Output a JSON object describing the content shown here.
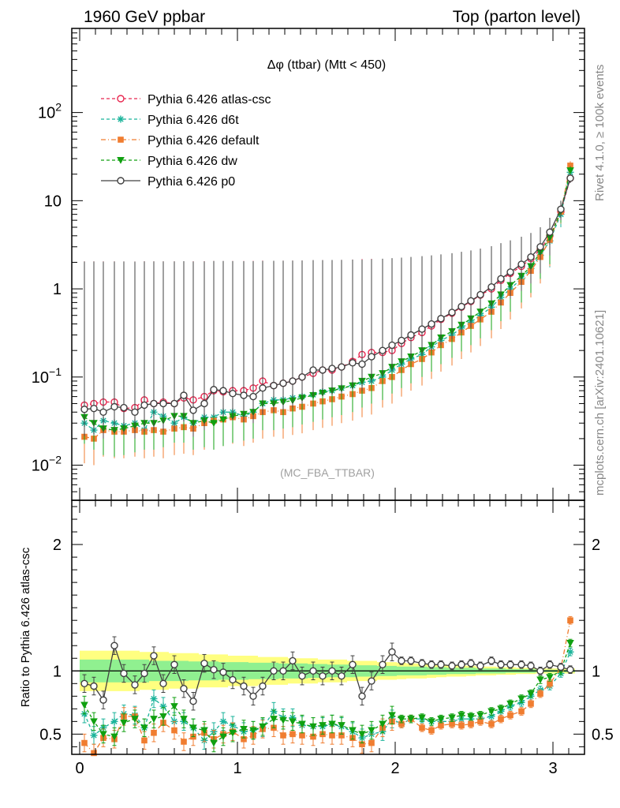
{
  "header": {
    "left": "1960 GeV ppbar",
    "right": "Top (parton level)"
  },
  "side": {
    "rivet": "Rivet 4.1.0, ≥ 100k events",
    "mcplots": "mcplots.cern.ch [arXiv:2401.10621]"
  },
  "colors": {
    "atlas_csc": "#e8264f",
    "d6t": "#19b39a",
    "default": "#f07d30",
    "dw": "#10a010",
    "p0": "#404040",
    "band_outer": "#ffff80",
    "band_inner": "#90f090"
  },
  "chart_data": [
    {
      "type": "line",
      "title": "Δφ (ttbar) (Mtt < 450)",
      "watermark": "(MC_FBA_TTBAR)",
      "yscale": "log",
      "ylim": [
        0.004,
        900
      ],
      "xlim": [
        -0.05,
        3.2
      ],
      "yticks": [
        {
          "value": 0.01,
          "base": "10",
          "exp": "−2"
        },
        {
          "value": 0.1,
          "base": "10",
          "exp": "−1"
        },
        {
          "value": 1,
          "label": "1"
        },
        {
          "value": 10,
          "label": "10"
        },
        {
          "value": 100,
          "base": "10",
          "exp": "2"
        }
      ],
      "legend_position": "top-left",
      "x": [
        0.03,
        0.09,
        0.15,
        0.22,
        0.28,
        0.35,
        0.41,
        0.47,
        0.53,
        0.6,
        0.66,
        0.72,
        0.79,
        0.85,
        0.91,
        0.97,
        1.04,
        1.1,
        1.16,
        1.23,
        1.29,
        1.35,
        1.41,
        1.48,
        1.54,
        1.6,
        1.66,
        1.73,
        1.79,
        1.85,
        1.92,
        1.98,
        2.04,
        2.1,
        2.17,
        2.23,
        2.29,
        2.36,
        2.42,
        2.48,
        2.54,
        2.61,
        2.67,
        2.73,
        2.8,
        2.86,
        2.92,
        2.98,
        3.05,
        3.11
      ],
      "series": [
        {
          "name": "Pythia 6.426 atlas-csc",
          "key": "atlas_csc",
          "marker": "open-circle",
          "dash": "4,3",
          "values": [
            0.048,
            0.05,
            0.052,
            0.052,
            0.044,
            0.045,
            0.055,
            0.05,
            0.052,
            0.05,
            0.058,
            0.055,
            0.06,
            0.07,
            0.068,
            0.07,
            0.07,
            0.075,
            0.09,
            0.08,
            0.085,
            0.09,
            0.1,
            0.11,
            0.12,
            0.12,
            0.13,
            0.15,
            0.18,
            0.19,
            0.19,
            0.2,
            0.24,
            0.28,
            0.32,
            0.38,
            0.45,
            0.53,
            0.62,
            0.72,
            0.85,
            1.0,
            1.25,
            1.5,
            1.8,
            2.2,
            2.8,
            4.0,
            7.5,
            18
          ]
        },
        {
          "name": "Pythia 6.426 d6t",
          "key": "d6t",
          "marker": "star",
          "dash": "4,3",
          "values": [
            0.03,
            0.025,
            0.032,
            0.03,
            0.028,
            0.03,
            0.025,
            0.04,
            0.036,
            0.03,
            0.035,
            0.03,
            0.035,
            0.035,
            0.04,
            0.04,
            0.036,
            0.04,
            0.05,
            0.055,
            0.055,
            0.058,
            0.06,
            0.063,
            0.068,
            0.07,
            0.075,
            0.08,
            0.087,
            0.09,
            0.1,
            0.12,
            0.14,
            0.16,
            0.18,
            0.22,
            0.26,
            0.3,
            0.36,
            0.42,
            0.5,
            0.62,
            0.8,
            1.0,
            1.3,
            1.7,
            2.4,
            3.5,
            7.0,
            21
          ]
        },
        {
          "name": "Pythia 6.426 default",
          "key": "default",
          "marker": "square",
          "dash": "6,3,1,3",
          "values": [
            0.021,
            0.02,
            0.025,
            0.024,
            0.024,
            0.025,
            0.024,
            0.025,
            0.024,
            0.026,
            0.027,
            0.026,
            0.03,
            0.032,
            0.033,
            0.035,
            0.033,
            0.036,
            0.04,
            0.042,
            0.04,
            0.044,
            0.046,
            0.05,
            0.053,
            0.056,
            0.06,
            0.064,
            0.07,
            0.075,
            0.09,
            0.1,
            0.12,
            0.14,
            0.16,
            0.19,
            0.23,
            0.27,
            0.32,
            0.38,
            0.45,
            0.55,
            0.7,
            0.9,
            1.2,
            1.6,
            2.3,
            3.6,
            7.5,
            25
          ]
        },
        {
          "name": "Pythia 6.426 dw",
          "key": "dw",
          "marker": "down-triangle",
          "dash": "4,3",
          "values": [
            0.035,
            0.03,
            0.026,
            0.025,
            0.026,
            0.028,
            0.03,
            0.03,
            0.032,
            0.036,
            0.036,
            0.03,
            0.032,
            0.03,
            0.033,
            0.036,
            0.038,
            0.04,
            0.05,
            0.05,
            0.052,
            0.054,
            0.058,
            0.062,
            0.066,
            0.07,
            0.074,
            0.08,
            0.09,
            0.1,
            0.11,
            0.13,
            0.15,
            0.17,
            0.2,
            0.23,
            0.28,
            0.33,
            0.39,
            0.46,
            0.55,
            0.68,
            0.86,
            1.1,
            1.4,
            1.8,
            2.6,
            3.8,
            7.6,
            22
          ]
        },
        {
          "name": "Pythia 6.426 p0",
          "key": "p0",
          "marker": "open-circle",
          "dash": "",
          "values": [
            0.043,
            0.044,
            0.04,
            0.046,
            0.045,
            0.04,
            0.048,
            0.05,
            0.05,
            0.05,
            0.062,
            0.042,
            0.05,
            0.072,
            0.07,
            0.065,
            0.062,
            0.06,
            0.075,
            0.08,
            0.085,
            0.09,
            0.1,
            0.12,
            0.12,
            0.125,
            0.13,
            0.145,
            0.14,
            0.17,
            0.2,
            0.23,
            0.26,
            0.3,
            0.35,
            0.4,
            0.46,
            0.54,
            0.63,
            0.73,
            0.86,
            1.05,
            1.3,
            1.55,
            1.9,
            2.3,
            3.0,
            4.4,
            8.0,
            18
          ]
        }
      ]
    },
    {
      "type": "line",
      "ylabel": "Ratio to Pythia 6.426 atlas-csc",
      "ylim": [
        0.34,
        2.35
      ],
      "xlim": [
        -0.05,
        3.2
      ],
      "yticks": [
        0.5,
        1,
        2
      ],
      "xticks": [
        0,
        1,
        2,
        3
      ],
      "reference": 1,
      "band_inner_halfwidth": [
        0.09,
        0.09,
        0.09,
        0.09,
        0.09,
        0.09,
        0.09,
        0.08,
        0.08,
        0.08,
        0.08,
        0.075,
        0.075,
        0.075,
        0.07,
        0.07,
        0.07,
        0.065,
        0.065,
        0.065,
        0.06,
        0.06,
        0.06,
        0.055,
        0.055,
        0.05,
        0.05,
        0.05,
        0.045,
        0.045,
        0.04,
        0.04,
        0.035,
        0.035,
        0.035,
        0.03,
        0.03,
        0.025,
        0.025,
        0.025,
        0.02,
        0.02,
        0.02,
        0.015,
        0.015,
        0.015,
        0.01,
        0.01,
        0.01,
        0.01
      ],
      "band_outer_halfwidth": [
        0.16,
        0.16,
        0.16,
        0.16,
        0.16,
        0.16,
        0.15,
        0.15,
        0.15,
        0.14,
        0.14,
        0.14,
        0.13,
        0.13,
        0.13,
        0.12,
        0.12,
        0.12,
        0.11,
        0.11,
        0.11,
        0.1,
        0.1,
        0.1,
        0.09,
        0.09,
        0.09,
        0.08,
        0.08,
        0.08,
        0.07,
        0.07,
        0.065,
        0.06,
        0.06,
        0.055,
        0.05,
        0.045,
        0.045,
        0.04,
        0.035,
        0.035,
        0.03,
        0.03,
        0.025,
        0.025,
        0.02,
        0.02,
        0.02,
        0.02
      ],
      "series": [
        {
          "name": "Pythia 6.426 d6t",
          "key": "d6t",
          "values": [
            0.66,
            0.49,
            0.55,
            0.6,
            0.66,
            0.65,
            0.55,
            0.78,
            0.72,
            0.6,
            0.6,
            0.55,
            0.45,
            0.52,
            0.6,
            0.57,
            0.52,
            0.53,
            0.55,
            0.68,
            0.63,
            0.63,
            0.57,
            0.56,
            0.56,
            0.58,
            0.56,
            0.52,
            0.47,
            0.5,
            0.52,
            0.62,
            0.58,
            0.62,
            0.62,
            0.6,
            0.6,
            0.6,
            0.62,
            0.62,
            0.62,
            0.64,
            0.68,
            0.72,
            0.75,
            0.8,
            0.85,
            0.88,
            0.98,
            1.15
          ]
        },
        {
          "name": "Pythia 6.426 default",
          "key": "default",
          "values": [
            0.43,
            0.35,
            0.47,
            0.46,
            0.64,
            0.64,
            0.45,
            0.51,
            0.59,
            0.53,
            0.44,
            0.48,
            0.51,
            0.46,
            0.5,
            0.52,
            0.46,
            0.49,
            0.54,
            0.55,
            0.49,
            0.5,
            0.49,
            0.48,
            0.5,
            0.49,
            0.49,
            0.47,
            0.42,
            0.43,
            0.55,
            0.6,
            0.58,
            0.62,
            0.55,
            0.53,
            0.57,
            0.58,
            0.57,
            0.58,
            0.6,
            0.58,
            0.62,
            0.65,
            0.68,
            0.74,
            0.82,
            0.9,
            1.02,
            1.4
          ]
        },
        {
          "name": "Pythia 6.426 dw",
          "key": "dw",
          "values": [
            0.73,
            0.6,
            0.5,
            0.48,
            0.59,
            0.62,
            0.55,
            0.62,
            0.64,
            0.72,
            0.62,
            0.55,
            0.53,
            0.43,
            0.48,
            0.51,
            0.54,
            0.53,
            0.56,
            0.62,
            0.61,
            0.6,
            0.58,
            0.56,
            0.57,
            0.58,
            0.57,
            0.53,
            0.5,
            0.53,
            0.58,
            0.65,
            0.62,
            0.62,
            0.63,
            0.6,
            0.62,
            0.63,
            0.65,
            0.64,
            0.65,
            0.68,
            0.7,
            0.74,
            0.78,
            0.82,
            0.93,
            0.95,
            1.0,
            1.22
          ]
        },
        {
          "name": "Pythia 6.426 p0",
          "key": "p0",
          "values": [
            0.9,
            0.88,
            0.77,
            1.2,
            0.98,
            0.89,
            0.98,
            1.12,
            0.9,
            1.05,
            0.86,
            0.76,
            1.06,
            1.01,
            0.99,
            0.93,
            0.88,
            0.8,
            0.88,
            1.0,
            1.0,
            1.08,
            0.96,
            1.0,
            0.96,
            1.0,
            0.96,
            1.05,
            0.8,
            0.92,
            1.05,
            1.15,
            1.08,
            1.08,
            1.06,
            1.05,
            1.05,
            1.04,
            1.05,
            1.06,
            1.04,
            1.08,
            1.05,
            1.05,
            1.05,
            1.04,
            1.0,
            1.05,
            1.03,
            1.01
          ]
        }
      ]
    }
  ]
}
